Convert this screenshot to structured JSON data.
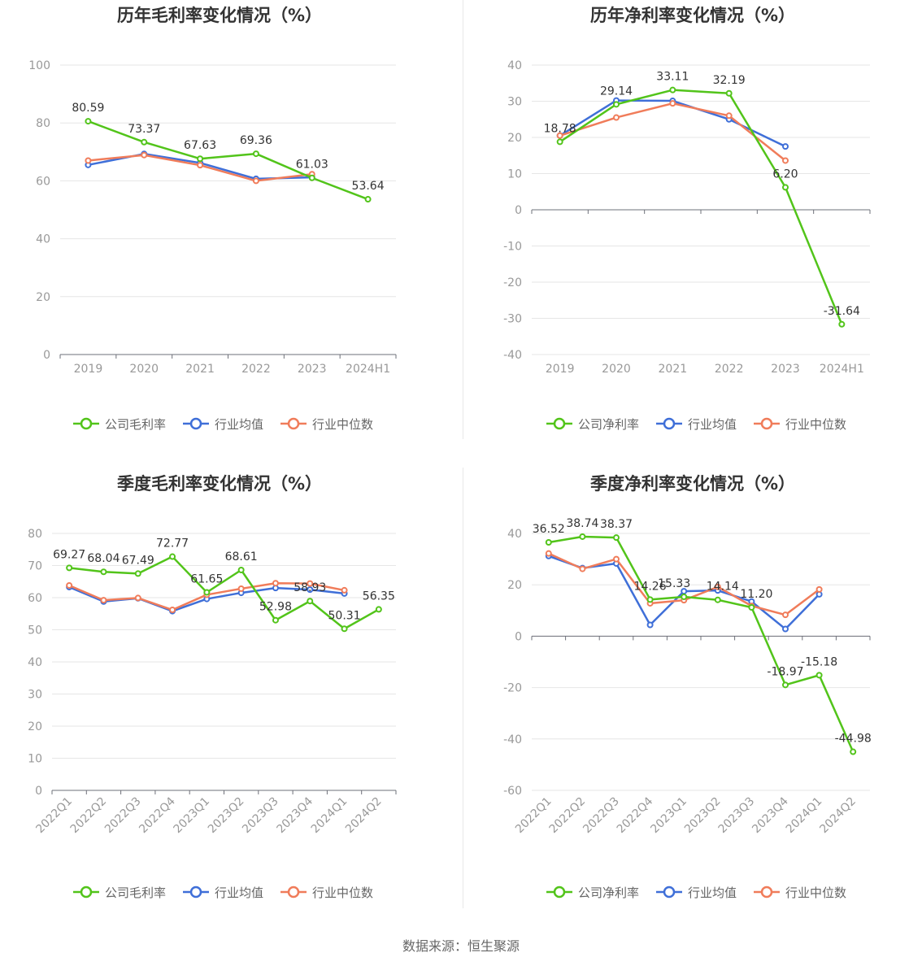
{
  "colors": {
    "company": "#52c41a",
    "avg": "#3f6fd8",
    "median": "#f07c5a"
  },
  "source_text": "数据来源：恒生聚源",
  "chart_data": [
    {
      "type": "line",
      "title": "历年毛利率变化情况（%）",
      "categories": [
        "2019",
        "2020",
        "2021",
        "2022",
        "2023",
        "2024H1"
      ],
      "ylim": [
        0,
        100
      ],
      "yticks": [
        0,
        20,
        40,
        60,
        80,
        100
      ],
      "series": [
        {
          "name": "公司毛利率",
          "values": [
            80.59,
            73.37,
            67.63,
            69.36,
            61.03,
            53.64
          ],
          "labels": [
            "80.59",
            "73.37",
            "67.63",
            "69.36",
            "61.03",
            "53.64"
          ]
        },
        {
          "name": "行业均值",
          "values": [
            65.5,
            69.3,
            66.2,
            60.7,
            61.2,
            null
          ]
        },
        {
          "name": "行业中位数",
          "values": [
            67.0,
            68.9,
            65.4,
            60.0,
            62.3,
            null
          ]
        }
      ],
      "legend_position": "bottom",
      "rotate_x_labels": false
    },
    {
      "type": "line",
      "title": "历年净利率变化情况（%）",
      "categories": [
        "2019",
        "2020",
        "2021",
        "2022",
        "2023",
        "2024H1"
      ],
      "ylim": [
        -40,
        40
      ],
      "yticks": [
        -40,
        -30,
        -20,
        -10,
        0,
        10,
        20,
        30,
        40
      ],
      "series": [
        {
          "name": "公司净利率",
          "values": [
            18.78,
            29.14,
            33.11,
            32.19,
            6.2,
            -31.64
          ],
          "labels": [
            "18.78",
            "29.14",
            "33.11",
            "32.19",
            "6.20",
            "-31.64"
          ]
        },
        {
          "name": "行业均值",
          "values": [
            20.5,
            30.2,
            30.1,
            25.0,
            17.5,
            null
          ]
        },
        {
          "name": "行业中位数",
          "values": [
            20.5,
            25.5,
            29.4,
            26.0,
            13.6,
            null
          ]
        }
      ],
      "legend_position": "bottom",
      "rotate_x_labels": false
    },
    {
      "type": "line",
      "title": "季度毛利率变化情况（%）",
      "categories": [
        "2022Q1",
        "2022Q2",
        "2022Q3",
        "2022Q4",
        "2023Q1",
        "2023Q2",
        "2023Q3",
        "2023Q4",
        "2024Q1",
        "2024Q2"
      ],
      "ylim": [
        0,
        80
      ],
      "yticks": [
        0,
        10,
        20,
        30,
        40,
        50,
        60,
        70,
        80
      ],
      "series": [
        {
          "name": "公司毛利率",
          "values": [
            69.27,
            68.04,
            67.49,
            72.77,
            61.65,
            68.61,
            52.98,
            58.93,
            50.31,
            56.35
          ],
          "labels": [
            "69.27",
            "68.04",
            "67.49",
            "72.77",
            "61.65",
            "68.61",
            "52.98",
            "58.93",
            "50.31",
            "56.35"
          ]
        },
        {
          "name": "行业均值",
          "values": [
            63.3,
            58.8,
            59.8,
            55.8,
            59.6,
            61.5,
            63.0,
            62.5,
            61.3,
            null
          ]
        },
        {
          "name": "行业中位数",
          "values": [
            63.8,
            59.2,
            59.9,
            56.2,
            60.9,
            62.8,
            64.5,
            64.4,
            62.3,
            null
          ]
        }
      ],
      "legend_position": "bottom",
      "rotate_x_labels": true
    },
    {
      "type": "line",
      "title": "季度净利率变化情况（%）",
      "categories": [
        "2022Q1",
        "2022Q2",
        "2022Q3",
        "2022Q4",
        "2023Q1",
        "2023Q2",
        "2023Q3",
        "2023Q4",
        "2024Q1",
        "2024Q2"
      ],
      "ylim": [
        -60,
        40
      ],
      "yticks": [
        -60,
        -40,
        -20,
        0,
        20,
        40
      ],
      "series": [
        {
          "name": "公司净利率",
          "values": [
            36.52,
            38.74,
            38.37,
            14.26,
            15.33,
            14.14,
            11.2,
            -18.97,
            -15.18,
            -44.98
          ],
          "labels": [
            "36.52",
            "38.74",
            "38.37",
            "14.26",
            "15.33",
            "14.14",
            "11.20",
            "-18.97",
            "-15.18",
            "-44.98"
          ]
        },
        {
          "name": "行业均值",
          "values": [
            31.2,
            26.5,
            28.3,
            4.4,
            17.5,
            17.8,
            13.5,
            2.8,
            16.3,
            null
          ]
        },
        {
          "name": "行业中位数",
          "values": [
            32.2,
            26.2,
            30.0,
            12.8,
            14.0,
            19.2,
            11.8,
            8.3,
            18.2,
            null
          ]
        }
      ],
      "legend_position": "bottom",
      "rotate_x_labels": true
    }
  ]
}
